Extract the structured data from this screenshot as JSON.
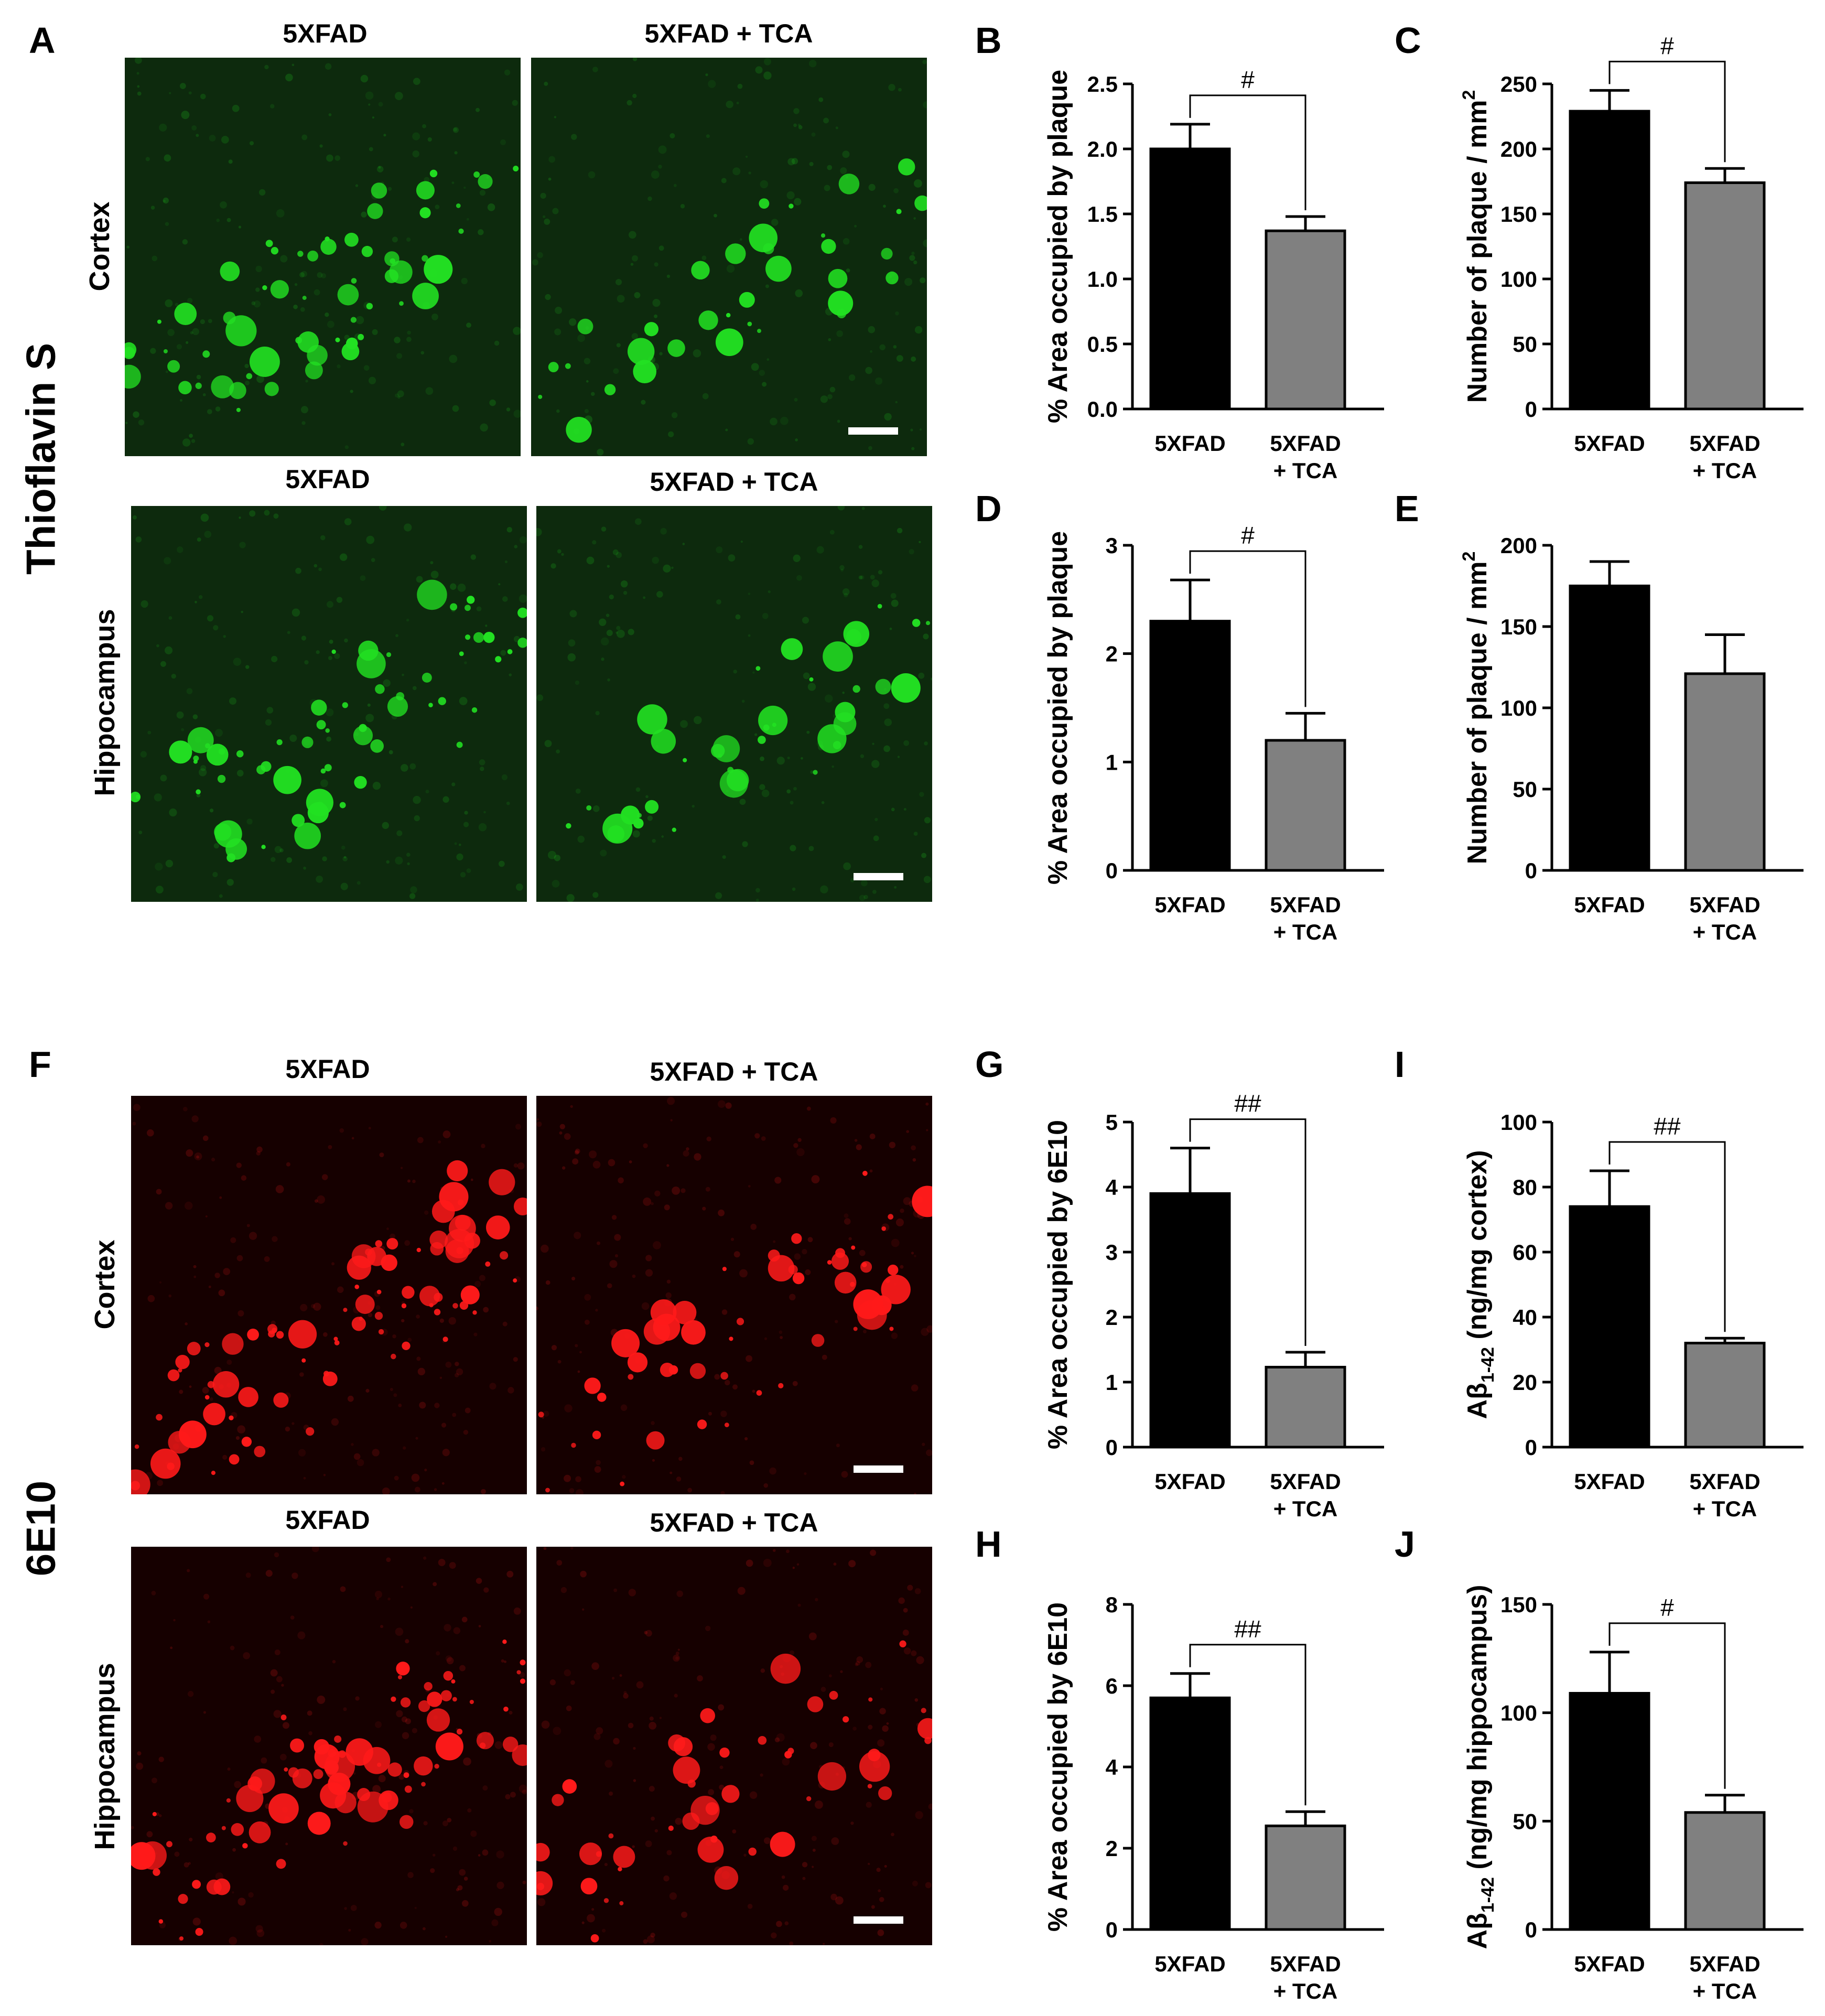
{
  "figure": {
    "panel_letters": [
      "A",
      "B",
      "C",
      "D",
      "E",
      "F",
      "G",
      "H",
      "I",
      "J"
    ],
    "stain_labels": [
      "Thioflavin S",
      "6E10"
    ],
    "region_labels": [
      "Cortex",
      "Hippocampus",
      "Cortex",
      "Hippocampus"
    ],
    "group_labels": [
      "5XFAD",
      "5XFAD + TCA"
    ],
    "micrograph_colors": {
      "thioflavin": "#22e022",
      "6e10": "#ff1a1a"
    }
  },
  "chart_data": [
    {
      "panel": "B",
      "type": "bar",
      "categories": [
        "5XFAD",
        "5XFAD\n+ TCA"
      ],
      "values": [
        2.0,
        1.37
      ],
      "errors": [
        0.19,
        0.11
      ],
      "colors": [
        "#000000",
        "#808080"
      ],
      "ylabel": "% Area occupied by plaque",
      "ylim": [
        0,
        2.5
      ],
      "yticks": [
        "0.0",
        "0.5",
        "1.0",
        "1.5",
        "2.0",
        "2.5"
      ],
      "significance": "#"
    },
    {
      "panel": "C",
      "type": "bar",
      "categories": [
        "5XFAD",
        "5XFAD\n+ TCA"
      ],
      "values": [
        229,
        174
      ],
      "errors": [
        16,
        11
      ],
      "colors": [
        "#000000",
        "#808080"
      ],
      "ylabel": "Number of plaque / mm",
      "ylabel_sup": "2",
      "ylim": [
        0,
        250
      ],
      "yticks": [
        "0",
        "50",
        "100",
        "150",
        "200",
        "250"
      ],
      "significance": "#"
    },
    {
      "panel": "D",
      "type": "bar",
      "categories": [
        "5XFAD",
        "5XFAD\n+ TCA"
      ],
      "values": [
        2.3,
        1.2
      ],
      "errors": [
        0.38,
        0.25
      ],
      "colors": [
        "#000000",
        "#808080"
      ],
      "ylabel": "% Area occupied by plaque",
      "ylim": [
        0,
        3
      ],
      "yticks": [
        "0",
        "1",
        "2",
        "3"
      ],
      "significance": "#"
    },
    {
      "panel": "E",
      "type": "bar",
      "categories": [
        "5XFAD",
        "5XFAD\n+ TCA"
      ],
      "values": [
        175,
        121
      ],
      "errors": [
        15,
        24
      ],
      "colors": [
        "#000000",
        "#808080"
      ],
      "ylabel": "Number of plaque / mm",
      "ylabel_sup": "2",
      "ylim": [
        0,
        200
      ],
      "yticks": [
        "0",
        "50",
        "100",
        "150",
        "200"
      ],
      "significance": ""
    },
    {
      "panel": "G",
      "type": "bar",
      "categories": [
        "5XFAD",
        "5XFAD\n+ TCA"
      ],
      "values": [
        3.9,
        1.23
      ],
      "errors": [
        0.7,
        0.23
      ],
      "colors": [
        "#000000",
        "#808080"
      ],
      "ylabel": "% Area occupied by 6E10",
      "ylim": [
        0,
        5
      ],
      "yticks": [
        "0",
        "1",
        "2",
        "3",
        "4",
        "5"
      ],
      "significance": "##"
    },
    {
      "panel": "H",
      "type": "bar",
      "categories": [
        "5XFAD",
        "5XFAD\n+ TCA"
      ],
      "values": [
        5.7,
        2.55
      ],
      "errors": [
        0.6,
        0.35
      ],
      "colors": [
        "#000000",
        "#808080"
      ],
      "ylabel": "% Area occupied by 6E10",
      "ylim": [
        0,
        8
      ],
      "yticks": [
        "0",
        "2",
        "4",
        "6",
        "8"
      ],
      "significance": "##"
    },
    {
      "panel": "I",
      "type": "bar",
      "categories": [
        "5XFAD",
        "5XFAD\n+ TCA"
      ],
      "values": [
        74,
        32
      ],
      "errors": [
        11,
        1.5
      ],
      "colors": [
        "#000000",
        "#808080"
      ],
      "ylabel": "Aβ",
      "ylabel_sub": "1-42",
      "ylabel_rest": " (ng/mg cortex)",
      "ylim": [
        0,
        100
      ],
      "yticks": [
        "0",
        "20",
        "40",
        "60",
        "80",
        "100"
      ],
      "significance": "##"
    },
    {
      "panel": "J",
      "type": "bar",
      "categories": [
        "5XFAD",
        "5XFAD\n+ TCA"
      ],
      "values": [
        109,
        54
      ],
      "errors": [
        19,
        8
      ],
      "colors": [
        "#000000",
        "#808080"
      ],
      "ylabel": "Aβ",
      "ylabel_sub": "1-42",
      "ylabel_rest": " (ng/mg hippocampus)",
      "ylim": [
        0,
        150
      ],
      "yticks": [
        "0",
        "50",
        "100",
        "150"
      ],
      "significance": "#"
    }
  ]
}
